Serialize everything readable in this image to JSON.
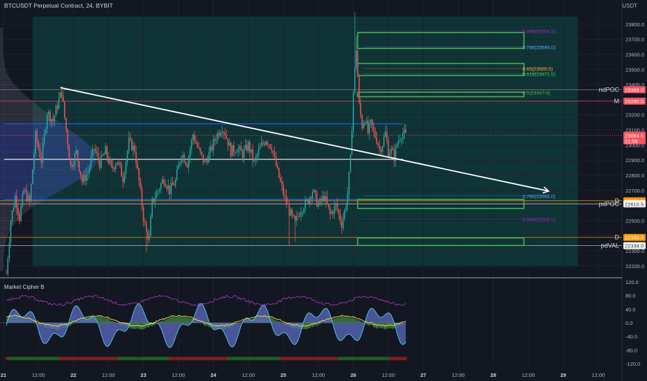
{
  "header": {
    "symbol_title": "BTCUSDT Perpetual Contract, 24, BYBIT",
    "currency": "USDT"
  },
  "indicator": {
    "name": "Market Cipher B",
    "ticks": [
      {
        "v": 120,
        "label": "120.0"
      },
      {
        "v": 80,
        "label": "80.0"
      },
      {
        "v": 40,
        "label": "40.0"
      },
      {
        "v": 0,
        "label": "0.0"
      },
      {
        "v": -40,
        "label": "-40.0"
      },
      {
        "v": -80,
        "label": "-80.0"
      },
      {
        "v": -120,
        "label": "-120.0"
      }
    ]
  },
  "chart_data": {
    "type": "candlestick",
    "y_axis": {
      "min": 22135,
      "max": 23905,
      "ticks": [
        "23800.0",
        "23700.0",
        "23600.0",
        "23500.0",
        "23400.0",
        "23300.0",
        "23200.0",
        "23100.0",
        "23000.0",
        "22900.0",
        "22800.0",
        "22700.0",
        "22600.0",
        "22500.0",
        "22400.0",
        "22300.0",
        "22200.0"
      ]
    },
    "x_axis": {
      "ticks": [
        {
          "label": "21",
          "bar": -2
        },
        {
          "label": "12:00",
          "bar": 22
        },
        {
          "label": "22",
          "bar": 46
        },
        {
          "label": "12:00",
          "bar": 70
        },
        {
          "label": "23",
          "bar": 94
        },
        {
          "label": "12:00",
          "bar": 118
        },
        {
          "label": "24",
          "bar": 142
        },
        {
          "label": "12:00",
          "bar": 166
        },
        {
          "label": "25",
          "bar": 190
        },
        {
          "label": "12:00",
          "bar": 214
        },
        {
          "label": "26",
          "bar": 238
        },
        {
          "label": "12:00",
          "bar": 262
        },
        {
          "label": "27",
          "bar": 286
        },
        {
          "label": "12:00",
          "bar": 310
        },
        {
          "label": "28",
          "bar": 334
        },
        {
          "label": "12:00",
          "bar": 358
        },
        {
          "label": "29",
          "bar": 382
        },
        {
          "label": "12:00",
          "bar": 406
        }
      ]
    },
    "bars": 275,
    "path": [
      [
        0,
        22150
      ],
      [
        3,
        22500
      ],
      [
        6,
        22660
      ],
      [
        9,
        22520
      ],
      [
        12,
        22700
      ],
      [
        16,
        22620
      ],
      [
        20,
        23060
      ],
      [
        24,
        22900
      ],
      [
        28,
        23220
      ],
      [
        32,
        23160
      ],
      [
        36,
        23300
      ],
      [
        38,
        23350
      ],
      [
        40,
        23180
      ],
      [
        44,
        22860
      ],
      [
        48,
        22950
      ],
      [
        52,
        22760
      ],
      [
        56,
        22820
      ],
      [
        60,
        22980
      ],
      [
        64,
        22880
      ],
      [
        68,
        22960
      ],
      [
        72,
        22840
      ],
      [
        76,
        22900
      ],
      [
        80,
        22780
      ],
      [
        84,
        23020
      ],
      [
        88,
        22970
      ],
      [
        92,
        22680
      ],
      [
        94,
        22520
      ],
      [
        96,
        22420
      ],
      [
        98,
        22380
      ],
      [
        100,
        22620
      ],
      [
        104,
        22700
      ],
      [
        108,
        22780
      ],
      [
        112,
        22700
      ],
      [
        116,
        22760
      ],
      [
        120,
        22950
      ],
      [
        124,
        22880
      ],
      [
        128,
        23070
      ],
      [
        132,
        22960
      ],
      [
        136,
        22880
      ],
      [
        140,
        22960
      ],
      [
        144,
        23060
      ],
      [
        148,
        23120
      ],
      [
        150,
        23080
      ],
      [
        154,
        22960
      ],
      [
        158,
        22980
      ],
      [
        162,
        22940
      ],
      [
        166,
        23000
      ],
      [
        170,
        22880
      ],
      [
        174,
        22980
      ],
      [
        178,
        23040
      ],
      [
        182,
        22990
      ],
      [
        186,
        22820
      ],
      [
        190,
        22680
      ],
      [
        194,
        22560
      ],
      [
        198,
        22480
      ],
      [
        202,
        22580
      ],
      [
        206,
        22620
      ],
      [
        210,
        22700
      ],
      [
        214,
        22600
      ],
      [
        218,
        22660
      ],
      [
        222,
        22540
      ],
      [
        226,
        22600
      ],
      [
        230,
        22480
      ],
      [
        232,
        22560
      ],
      [
        234,
        22680
      ],
      [
        236,
        22900
      ],
      [
        238,
        23350
      ],
      [
        240,
        23640
      ],
      [
        242,
        23260
      ],
      [
        244,
        23130
      ],
      [
        246,
        23180
      ],
      [
        248,
        23080
      ],
      [
        250,
        23140
      ],
      [
        252,
        23080
      ],
      [
        254,
        23040
      ],
      [
        256,
        22970
      ],
      [
        258,
        23010
      ],
      [
        260,
        23080
      ],
      [
        262,
        22960
      ],
      [
        264,
        22960
      ],
      [
        266,
        22920
      ],
      [
        268,
        23010
      ],
      [
        270,
        23060
      ],
      [
        272,
        23080
      ],
      [
        274,
        23064
      ]
    ],
    "spikes": [
      {
        "bar": 239,
        "high": 23880
      },
      {
        "bar": 240,
        "high": 23720
      },
      {
        "bar": 96,
        "low": 22290
      },
      {
        "bar": 194,
        "low": 22330
      },
      {
        "bar": 38,
        "high": 23390
      },
      {
        "bar": 198,
        "low": 22360
      }
    ],
    "fib_levels": [
      {
        "ratio": "0.886",
        "value": 23754.5,
        "color": "#9c27b0"
      },
      {
        "ratio": "0.786",
        "value": 23649.0,
        "color": "#5c9ded"
      },
      {
        "ratio": "0.65",
        "value": 23505.5,
        "color": "#f5a623"
      },
      {
        "ratio": "0.618",
        "value": 23471.5,
        "color": "#3ec97a"
      },
      {
        "ratio": "0.5",
        "value": 23347.0,
        "color": "#4caf50"
      },
      {
        "ratio": "0.786",
        "value": 22663.0,
        "color": "#5c9ded"
      },
      {
        "ratio": "0.886",
        "value": 22509.0,
        "color": "#9c27b0"
      }
    ],
    "boxes": [
      {
        "top": 23745,
        "bottom": 23640
      },
      {
        "top": 23540,
        "bottom": 23460
      },
      {
        "top": 23350,
        "bottom": 23320
      },
      {
        "top": 22640,
        "bottom": 22580
      },
      {
        "top": 22385,
        "bottom": 22335
      }
    ],
    "levels": [
      {
        "label": "ndPOC",
        "value": 23366.0,
        "tag": "23366.0",
        "tag_color": "#f7525f",
        "line_color": "#787b86"
      },
      {
        "label": "M",
        "value": 23290.5,
        "tag": "23290.5",
        "tag_color": "#f7525f",
        "line_color": "#f7525f"
      },
      {
        "label": "",
        "value": 23064.5,
        "tag": "23064.5",
        "tag2": "21:56",
        "tag_color": "#f7525f",
        "line_color": "#f7525f",
        "dotted": true
      },
      {
        "label": "D",
        "value": 22631.0,
        "tag": "22631.0",
        "tag_color": "#ff9800",
        "line_color": "#ff9800"
      },
      {
        "label": "pdPOC",
        "value": 22610.5,
        "tag": "22610.5",
        "tag_color": "#ffffff",
        "line_color": "#cccccc"
      },
      {
        "label": "D",
        "value": 22388.5,
        "tag": "22388.5",
        "tag_color": "#ff9800",
        "line_color": "#ff9800"
      },
      {
        "label": "pdVAL",
        "value": 22334.0,
        "tag": "22334.0",
        "tag_color": "#ffffff",
        "line_color": "#cccccc"
      }
    ],
    "value_area": {
      "top": 23140,
      "bottom": 22640,
      "poc": 22905
    },
    "trendline": {
      "from": {
        "bar": 37,
        "price": 23380
      },
      "to": {
        "bar": 372,
        "price": 22695
      }
    },
    "colors": {
      "up": "#26a69a",
      "down": "#ef5350",
      "bg": "#131722",
      "range": "#0f3a3a",
      "box": "#4caf50",
      "blue_line": "#2962ff"
    }
  }
}
